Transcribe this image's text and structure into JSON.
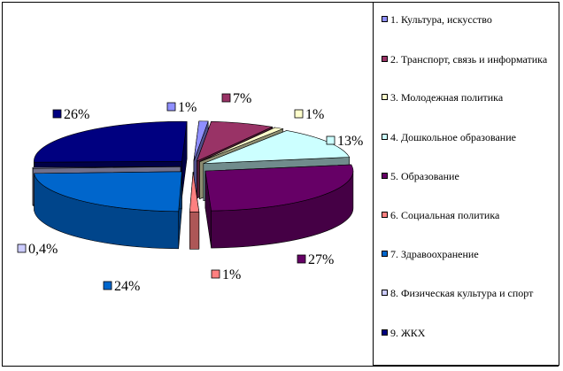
{
  "chart_data": {
    "type": "pie",
    "values": [
      1,
      7,
      1,
      13,
      27,
      1,
      24,
      0.4,
      26
    ],
    "labels": [
      "1%",
      "7%",
      "1%",
      "13%",
      "27%",
      "1%",
      "24%",
      "0,4%",
      "26%"
    ],
    "categories": [
      "1. Культура, искусство",
      "2. Транспорт, связь и информатика",
      "3. Молодежная политика",
      "4. Дошкольное образование",
      "5. Образование",
      "6. Социальная политика",
      "7. Здравоохранение",
      "8. Физическая культура и спорт",
      "9. ЖКХ"
    ],
    "colors": [
      "#8f8fff",
      "#993366",
      "#ffffcc",
      "#ccffff",
      "#660066",
      "#ff8080",
      "#0066cc",
      "#ccccff",
      "#000080"
    ],
    "legend_position": "right"
  }
}
